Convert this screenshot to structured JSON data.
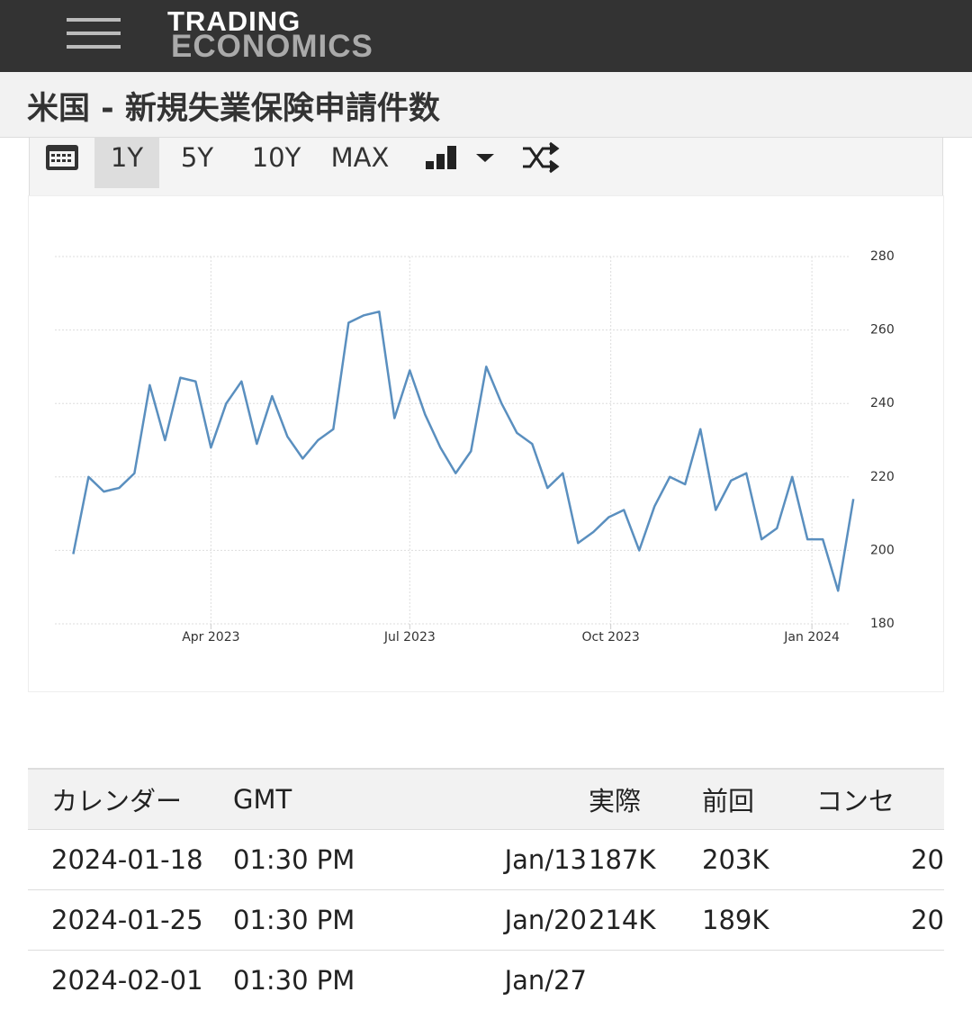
{
  "header": {
    "brand_top": "TRADING",
    "brand_bottom": "ECONOMICS"
  },
  "page_title": "米国 - 新規失業保険申請件数",
  "toolbar": {
    "ranges": [
      "1Y",
      "5Y",
      "10Y",
      "MAX"
    ],
    "active": "1Y"
  },
  "chart_data": {
    "type": "line",
    "x": [
      0,
      1,
      2,
      3,
      4,
      5,
      6,
      7,
      8,
      9,
      10,
      11,
      12,
      13,
      14,
      15,
      16,
      17,
      18,
      19,
      20,
      21,
      22,
      23,
      24,
      25,
      26,
      27,
      28,
      29,
      30,
      31,
      32,
      33,
      34,
      35,
      36,
      37,
      38,
      39,
      40,
      41,
      42,
      43,
      44,
      45,
      46,
      47,
      48,
      49,
      50,
      51
    ],
    "series": [
      {
        "name": "新規失業保険申請件数",
        "color": "#5a8fbf",
        "values": [
          199,
          220,
          216,
          217,
          221,
          245,
          230,
          247,
          246,
          228,
          240,
          246,
          229,
          242,
          231,
          225,
          230,
          233,
          262,
          264,
          265,
          236,
          249,
          237,
          228,
          221,
          227,
          250,
          240,
          232,
          229,
          217,
          221,
          202,
          205,
          209,
          211,
          200,
          212,
          220,
          218,
          233,
          211,
          219,
          221,
          203,
          206,
          220,
          203,
          203,
          189,
          214
        ]
      }
    ],
    "xlim": [
      -1.2,
      51.4
    ],
    "xticks": [
      {
        "value": 9,
        "label": "Apr 2023"
      },
      {
        "value": 22,
        "label": "Jul 2023"
      },
      {
        "value": 35.14,
        "label": "Oct 2023"
      },
      {
        "value": 48.29,
        "label": "Jan 2024"
      }
    ],
    "ylim": [
      180,
      280
    ],
    "yticks": [
      180,
      200,
      220,
      240,
      260,
      280
    ],
    "grid": true
  },
  "table": {
    "headers": [
      "カレンダー",
      "GMT",
      "実際",
      "前回",
      "コンセ"
    ],
    "rows": [
      [
        "2024-01-18",
        "01:30 PM",
        "Jan/13",
        "187K",
        "203K",
        "20"
      ],
      [
        "2024-01-25",
        "01:30 PM",
        "Jan/20",
        "214K",
        "189K",
        "20"
      ],
      [
        "2024-02-01",
        "01:30 PM",
        "Jan/27"
      ]
    ]
  }
}
